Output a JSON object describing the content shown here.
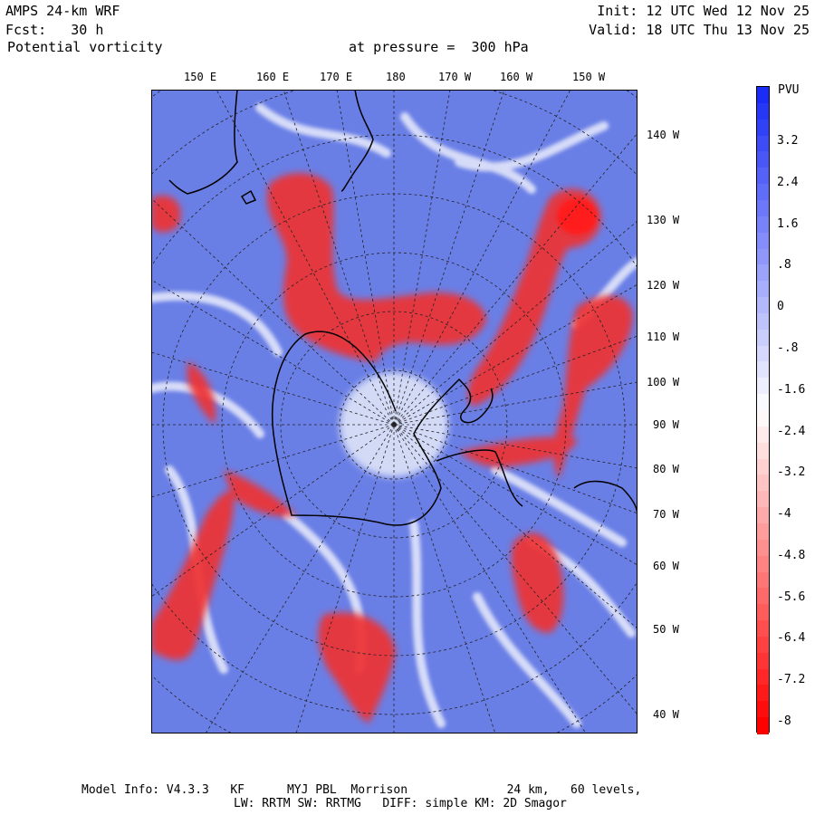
{
  "header": {
    "model": "AMPS 24-km WRF",
    "forecast": "Fcst:   30 h",
    "field": "Potential vorticity",
    "init": "Init: 12 UTC Wed 12 Nov 25",
    "valid": "Valid: 18 UTC Thu 13 Nov 25",
    "level": "at pressure =  300 hPa"
  },
  "map": {
    "top_labels": [
      "150 E",
      "160 E",
      "170 E",
      "180",
      "170 W",
      "160 W",
      "150 W"
    ],
    "right_labels": [
      "140 W",
      "130 W",
      "120 W",
      "110 W",
      "100 W",
      "90 W",
      "80 W",
      "70 W",
      "60 W",
      "50 W",
      "40 W"
    ],
    "colors": {
      "background": "#6a7fe6",
      "positive": "#ef3333",
      "light": "#ffffff",
      "coast": "#000000",
      "grid": "#222222"
    }
  },
  "colorbar": {
    "unit": "PVU",
    "ticks": [
      "3.2",
      "2.4",
      "1.6",
      ".8",
      "0",
      "-.8",
      "-1.6",
      "-2.4",
      "-3.2",
      "-4",
      "-4.8",
      "-5.6",
      "-6.4",
      "-7.2",
      "-8"
    ],
    "top_color": "#1a2cf5",
    "bottom_color": "#ff0000"
  },
  "footer": {
    "line1": "Model Info: V4.3.3   KF      MYJ PBL  Morrison              24 km,   60 levels,",
    "line2": "LW: RRTM SW: RRTMG   DIFF: simple KM: 2D Smagor"
  }
}
